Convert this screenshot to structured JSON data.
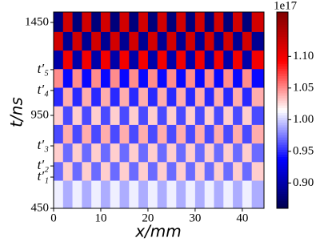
{
  "chart_data": {
    "type": "heatmap",
    "xlabel": "x/mm",
    "ylabel": "t/ns",
    "xlim": [
      0,
      44.6
    ],
    "ylim": [
      450,
      1506
    ],
    "xticks": [
      0,
      10,
      20,
      30,
      40
    ],
    "yticks": [
      450,
      {
        "value": 618,
        "label": "t′₁"
      },
      {
        "value": 678,
        "label": "t′₂"
      },
      {
        "value": 786,
        "label": "t′₃"
      },
      950,
      {
        "value": 1084,
        "label": "t′₄"
      },
      {
        "value": 1196,
        "label": "t′₅"
      },
      1450
    ],
    "x_edges": [
      0,
      2,
      4,
      6,
      8,
      10,
      12,
      14,
      16,
      18,
      20,
      22,
      24,
      26,
      28,
      30,
      32,
      34,
      36,
      38,
      40,
      42,
      44.6
    ],
    "y_edges": [
      450,
      600,
      700,
      800,
      900,
      1000,
      1100,
      1200,
      1300,
      1400,
      1506
    ],
    "z": [
      [
        1.01,
        0.99,
        1.01,
        0.99,
        1.01,
        0.99,
        1.01,
        0.99,
        1.01,
        0.99,
        1.01,
        0.99,
        1.01,
        0.99,
        1.01,
        0.99,
        1.01,
        0.99,
        1.01,
        0.99,
        1.01,
        0.99
      ],
      [
        0.97,
        1.03,
        0.97,
        1.03,
        0.97,
        1.03,
        0.97,
        1.03,
        0.97,
        1.03,
        0.97,
        1.03,
        0.97,
        1.03,
        0.97,
        1.03,
        0.97,
        1.03,
        0.97,
        1.03,
        0.97,
        1.03
      ],
      [
        1.03,
        0.97,
        1.03,
        0.97,
        1.03,
        0.97,
        1.03,
        0.97,
        1.03,
        0.97,
        1.03,
        0.97,
        1.03,
        0.97,
        1.03,
        0.97,
        1.03,
        0.97,
        1.03,
        0.97,
        1.03,
        0.97
      ],
      [
        0.96,
        1.04,
        0.96,
        1.04,
        0.96,
        1.04,
        0.96,
        1.04,
        0.96,
        1.04,
        0.96,
        1.04,
        0.96,
        1.04,
        0.96,
        1.04,
        0.96,
        1.04,
        0.96,
        1.04,
        0.96,
        1.04
      ],
      [
        1.03,
        0.96,
        1.03,
        0.96,
        1.03,
        0.96,
        1.03,
        0.96,
        1.03,
        0.96,
        1.03,
        0.96,
        1.03,
        0.96,
        1.03,
        0.96,
        1.03,
        0.96,
        1.03,
        0.96,
        1.03,
        0.96
      ],
      [
        0.95,
        1.04,
        0.95,
        1.04,
        0.95,
        1.04,
        0.95,
        1.04,
        0.95,
        1.04,
        0.95,
        1.04,
        0.95,
        1.04,
        0.95,
        1.04,
        0.95,
        1.04,
        0.95,
        1.04,
        0.95,
        1.04
      ],
      [
        1.05,
        0.94,
        1.05,
        0.94,
        1.05,
        0.94,
        1.05,
        0.94,
        1.05,
        0.94,
        1.05,
        0.94,
        1.05,
        0.94,
        1.05,
        0.94,
        1.05,
        0.94,
        1.05,
        0.94,
        1.05,
        0.94
      ],
      [
        0.9,
        1.1,
        0.9,
        1.1,
        0.9,
        1.1,
        0.9,
        1.1,
        0.9,
        1.1,
        0.9,
        1.1,
        0.9,
        1.1,
        0.9,
        1.1,
        0.9,
        1.1,
        0.9,
        1.1,
        0.9,
        1.1
      ],
      [
        1.12,
        0.89,
        1.12,
        0.89,
        1.12,
        0.89,
        1.12,
        0.89,
        1.12,
        0.89,
        1.12,
        0.89,
        1.12,
        0.89,
        1.12,
        0.89,
        1.12,
        0.89,
        1.12,
        0.89,
        1.12,
        0.89
      ],
      [
        0.88,
        1.12,
        0.88,
        1.12,
        0.88,
        1.12,
        0.88,
        1.12,
        0.88,
        1.12,
        0.88,
        1.12,
        0.88,
        1.12,
        0.88,
        1.12,
        0.88,
        1.12,
        0.88,
        1.12,
        0.88,
        1.12
      ]
    ],
    "colormap": "seismic",
    "clim": [
      0.86,
      1.17
    ],
    "cticks": [
      {
        "value": 0.9,
        "label": "0.90"
      },
      0.95,
      {
        "value": 1.0,
        "label": "1.00"
      },
      1.05,
      {
        "value": 1.1,
        "label": "1.10"
      }
    ],
    "c_offset": "1e17"
  }
}
